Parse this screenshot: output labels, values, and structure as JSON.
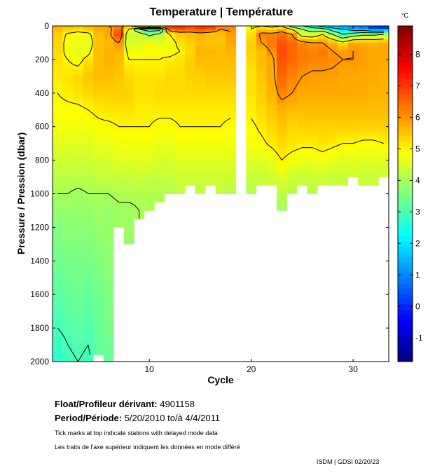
{
  "chart_data": {
    "type": "heatmap",
    "title": "Temperature | Température",
    "xlabel": "Cycle",
    "ylabel": "Pressure / Pression (dbar)",
    "colorbar_unit": "°C",
    "colormap": "jet",
    "clim": [
      -1.75,
      8.9
    ],
    "colorbar_ticks": [
      -1,
      0,
      1,
      2,
      3,
      4,
      5,
      6,
      7,
      8
    ],
    "xlim": [
      0.5,
      33.5
    ],
    "xticks": [
      10,
      20,
      30
    ],
    "ylim": [
      2000,
      0
    ],
    "yticks": [
      0,
      200,
      400,
      600,
      800,
      1000,
      1200,
      1400,
      1600,
      1800,
      2000
    ],
    "contour_levels": [
      2,
      3,
      4,
      5,
      6
    ],
    "pressure_levels": [
      0,
      20,
      50,
      100,
      150,
      200,
      300,
      400,
      500,
      600,
      700,
      800,
      900,
      1000,
      1100,
      1200,
      1300,
      1400,
      1600,
      1800,
      2000
    ],
    "profiles": [
      {
        "cycle": 1,
        "max_pressure": 2000,
        "temp": [
          5.8,
          5.6,
          5.4,
          5.3,
          5.3,
          5.2,
          5.1,
          5.0,
          4.9,
          4.8,
          4.6,
          4.4,
          4.2,
          4.0,
          3.8,
          3.6,
          3.5,
          3.4,
          3.2,
          3.0,
          2.7
        ]
      },
      {
        "cycle": 2,
        "max_pressure": 2000,
        "temp": [
          5.6,
          5.4,
          4.9,
          4.8,
          4.8,
          5.0,
          5.2,
          5.1,
          4.9,
          4.8,
          4.6,
          4.4,
          4.2,
          4.0,
          3.8,
          3.7,
          3.6,
          3.5,
          3.3,
          3.1,
          2.9
        ]
      },
      {
        "cycle": 3,
        "max_pressure": 2000,
        "temp": [
          5.6,
          5.2,
          4.8,
          4.7,
          4.6,
          4.8,
          5.3,
          5.2,
          4.9,
          4.8,
          4.6,
          4.4,
          4.2,
          3.9,
          3.8,
          3.7,
          3.6,
          3.5,
          3.4,
          3.2,
          3.0
        ]
      },
      {
        "cycle": 4,
        "max_pressure": 2000,
        "temp": [
          5.7,
          5.5,
          4.8,
          4.6,
          4.8,
          5.2,
          5.5,
          5.3,
          5.0,
          4.8,
          4.6,
          4.4,
          4.2,
          4.0,
          3.8,
          3.7,
          3.6,
          3.5,
          3.3,
          3.1,
          2.9
        ]
      },
      {
        "cycle": 5,
        "max_pressure": 1960,
        "temp": [
          5.9,
          5.7,
          5.6,
          5.5,
          5.6,
          5.6,
          5.6,
          5.4,
          5.1,
          4.9,
          4.7,
          4.5,
          4.3,
          4.0,
          3.9,
          3.8,
          3.7,
          3.6,
          3.4,
          3.3
        ]
      },
      {
        "cycle": 6,
        "max_pressure": 2000,
        "temp": [
          6.0,
          5.8,
          5.8,
          5.6,
          5.7,
          5.7,
          5.6,
          5.4,
          5.2,
          4.9,
          4.7,
          4.5,
          4.3,
          4.0,
          3.8,
          3.8,
          3.8,
          3.7,
          3.6,
          3.5,
          3.3
        ]
      },
      {
        "cycle": 7,
        "max_pressure": 1200,
        "temp": [
          6.2,
          6.4,
          6.8,
          6.0,
          5.7,
          5.6,
          5.5,
          5.4,
          5.2,
          5.0,
          4.8,
          4.6,
          4.3,
          4.1,
          3.9,
          3.9
        ]
      },
      {
        "cycle": 8,
        "max_pressure": 1300,
        "temp": [
          5.8,
          5.0,
          4.3,
          4.5,
          4.8,
          5.0,
          5.3,
          5.4,
          5.2,
          5.0,
          4.8,
          4.6,
          4.3,
          4.1,
          3.9,
          3.9,
          3.8
        ]
      },
      {
        "cycle": 9,
        "max_pressure": 1150,
        "temp": [
          7.5,
          3.0,
          4.5,
          4.5,
          4.8,
          5.0,
          5.2,
          5.2,
          5.1,
          5.0,
          4.8,
          4.6,
          4.4,
          4.1,
          4.0
        ]
      },
      {
        "cycle": 10,
        "max_pressure": 1100,
        "temp": [
          7.8,
          2.5,
          3.8,
          4.8,
          4.9,
          5.0,
          5.2,
          5.2,
          5.1,
          5.0,
          4.8,
          4.6,
          4.3,
          4.1,
          4.0
        ]
      },
      {
        "cycle": 11,
        "max_pressure": 1050,
        "temp": [
          7.6,
          2.6,
          4.2,
          4.6,
          4.9,
          5.0,
          5.2,
          5.3,
          5.1,
          4.9,
          4.7,
          4.5,
          4.3,
          4.1
        ]
      },
      {
        "cycle": 12,
        "max_pressure": 1000,
        "temp": [
          7.4,
          6.4,
          5.0,
          4.7,
          4.8,
          5.1,
          5.3,
          5.3,
          5.1,
          4.9,
          4.7,
          4.5,
          4.3,
          4.1
        ]
      },
      {
        "cycle": 13,
        "max_pressure": 1000,
        "temp": [
          7.2,
          6.8,
          5.5,
          5.2,
          5.0,
          5.2,
          5.3,
          5.3,
          5.1,
          5.0,
          4.8,
          4.6,
          4.4,
          4.2
        ]
      },
      {
        "cycle": 14,
        "max_pressure": 950,
        "temp": [
          7.0,
          6.5,
          5.6,
          5.4,
          5.3,
          5.4,
          5.4,
          5.3,
          5.1,
          5.0,
          4.8,
          4.6,
          4.4
        ]
      },
      {
        "cycle": 15,
        "max_pressure": 1000,
        "temp": [
          7.3,
          6.8,
          5.7,
          5.6,
          5.7,
          5.6,
          5.4,
          5.3,
          5.1,
          5.0,
          4.8,
          4.6,
          4.4,
          4.2
        ]
      },
      {
        "cycle": 16,
        "max_pressure": 950,
        "temp": [
          7.2,
          6.6,
          5.6,
          5.5,
          5.7,
          5.6,
          5.5,
          5.3,
          5.1,
          5.0,
          4.8,
          4.6,
          4.4
        ]
      },
      {
        "cycle": 17,
        "max_pressure": 1000,
        "temp": [
          6.5,
          6.0,
          5.6,
          5.5,
          5.6,
          5.6,
          5.5,
          5.3,
          5.1,
          5.0,
          4.8,
          4.6,
          4.4,
          4.2
        ]
      },
      {
        "cycle": 18,
        "max_pressure": 1000,
        "temp": [
          6.3,
          6.1,
          5.9,
          5.8,
          5.7,
          5.6,
          5.5,
          5.3,
          5.1,
          4.9,
          4.8,
          4.6,
          4.4,
          4.1
        ]
      },
      {
        "cycle": 20,
        "max_pressure": 1000,
        "temp": [
          4.8,
          5.0,
          5.2,
          5.4,
          5.4,
          5.3,
          5.2,
          5.2,
          5.1,
          4.9,
          4.8,
          4.6,
          4.3,
          4.1
        ]
      },
      {
        "cycle": 21,
        "max_pressure": 950,
        "temp": [
          5.0,
          5.5,
          6.2,
          6.0,
          5.6,
          5.6,
          5.5,
          5.4,
          5.3,
          5.1,
          4.9,
          4.6,
          4.3
        ]
      },
      {
        "cycle": 22,
        "max_pressure": 950,
        "temp": [
          4.8,
          5.3,
          6.2,
          6.3,
          6.1,
          5.8,
          5.8,
          5.7,
          5.5,
          5.3,
          5.1,
          4.7,
          4.4
        ]
      },
      {
        "cycle": 23,
        "max_pressure": 1100,
        "temp": [
          5.0,
          5.6,
          6.4,
          6.7,
          6.8,
          6.7,
          6.5,
          6.2,
          5.7,
          5.5,
          5.3,
          5.0,
          4.6,
          4.2,
          3.9
        ]
      },
      {
        "cycle": 24,
        "max_pressure": 1000,
        "temp": [
          3.5,
          5.0,
          6.0,
          6.5,
          6.5,
          6.5,
          6.2,
          6.0,
          5.6,
          5.3,
          5.2,
          4.8,
          4.4,
          4.1
        ]
      },
      {
        "cycle": 25,
        "max_pressure": 950,
        "temp": [
          3.0,
          4.0,
          4.6,
          6.2,
          6.3,
          6.3,
          6.0,
          5.8,
          5.6,
          5.4,
          5.1,
          4.7,
          4.3
        ]
      },
      {
        "cycle": 26,
        "max_pressure": 1000,
        "temp": [
          2.5,
          3.5,
          4.5,
          6.0,
          6.2,
          6.2,
          5.9,
          5.8,
          5.6,
          5.4,
          5.1,
          4.7,
          4.4,
          4.1
        ]
      },
      {
        "cycle": 27,
        "max_pressure": 950,
        "temp": [
          1.5,
          3.5,
          5.0,
          6.0,
          6.3,
          6.2,
          5.9,
          5.8,
          5.6,
          5.4,
          5.2,
          4.8,
          4.4
        ]
      },
      {
        "cycle": 28,
        "max_pressure": 950,
        "temp": [
          1.2,
          2.5,
          4.0,
          5.7,
          6.0,
          6.1,
          5.9,
          5.8,
          5.6,
          5.4,
          5.1,
          4.7,
          4.3
        ]
      },
      {
        "cycle": 29,
        "max_pressure": 950,
        "temp": [
          1.0,
          2.0,
          3.0,
          5.2,
          5.9,
          6.0,
          5.8,
          5.8,
          5.6,
          5.4,
          5.0,
          4.6,
          4.3
        ]
      },
      {
        "cycle": 30,
        "max_pressure": 900,
        "temp": [
          0.8,
          1.5,
          3.5,
          5.8,
          6.0,
          6.0,
          5.8,
          5.8,
          5.6,
          5.4,
          5.0,
          4.6,
          4.4
        ]
      },
      {
        "cycle": 31,
        "max_pressure": 950,
        "temp": [
          0.5,
          1.5,
          3.8,
          5.8,
          5.9,
          5.9,
          5.8,
          5.8,
          5.6,
          5.4,
          4.9,
          4.6,
          4.3
        ]
      },
      {
        "cycle": 32,
        "max_pressure": 950,
        "temp": [
          -0.5,
          1.0,
          3.8,
          5.7,
          5.8,
          5.8,
          5.8,
          5.7,
          5.6,
          5.4,
          4.9,
          4.6,
          4.3
        ]
      },
      {
        "cycle": 33,
        "max_pressure": 900,
        "temp": [
          -0.8,
          1.0,
          4.0,
          5.8,
          5.8,
          5.8,
          5.7,
          5.7,
          5.6,
          5.4,
          5.0,
          4.6,
          4.4
        ]
      }
    ]
  },
  "info": {
    "float_label": "Float/Profileur dérivant:",
    "float_id": "4901158",
    "period_label": "Period/Période:",
    "period_value": "5/20/2010  to/à  4/4/2011",
    "note_en": "Tick marks at top indicate stations with delayed mode data",
    "note_fr": "Les traits de l'axe supérieur indiquent les données en mode différé",
    "credit": "ISDM | GDSI  02/20/23"
  }
}
